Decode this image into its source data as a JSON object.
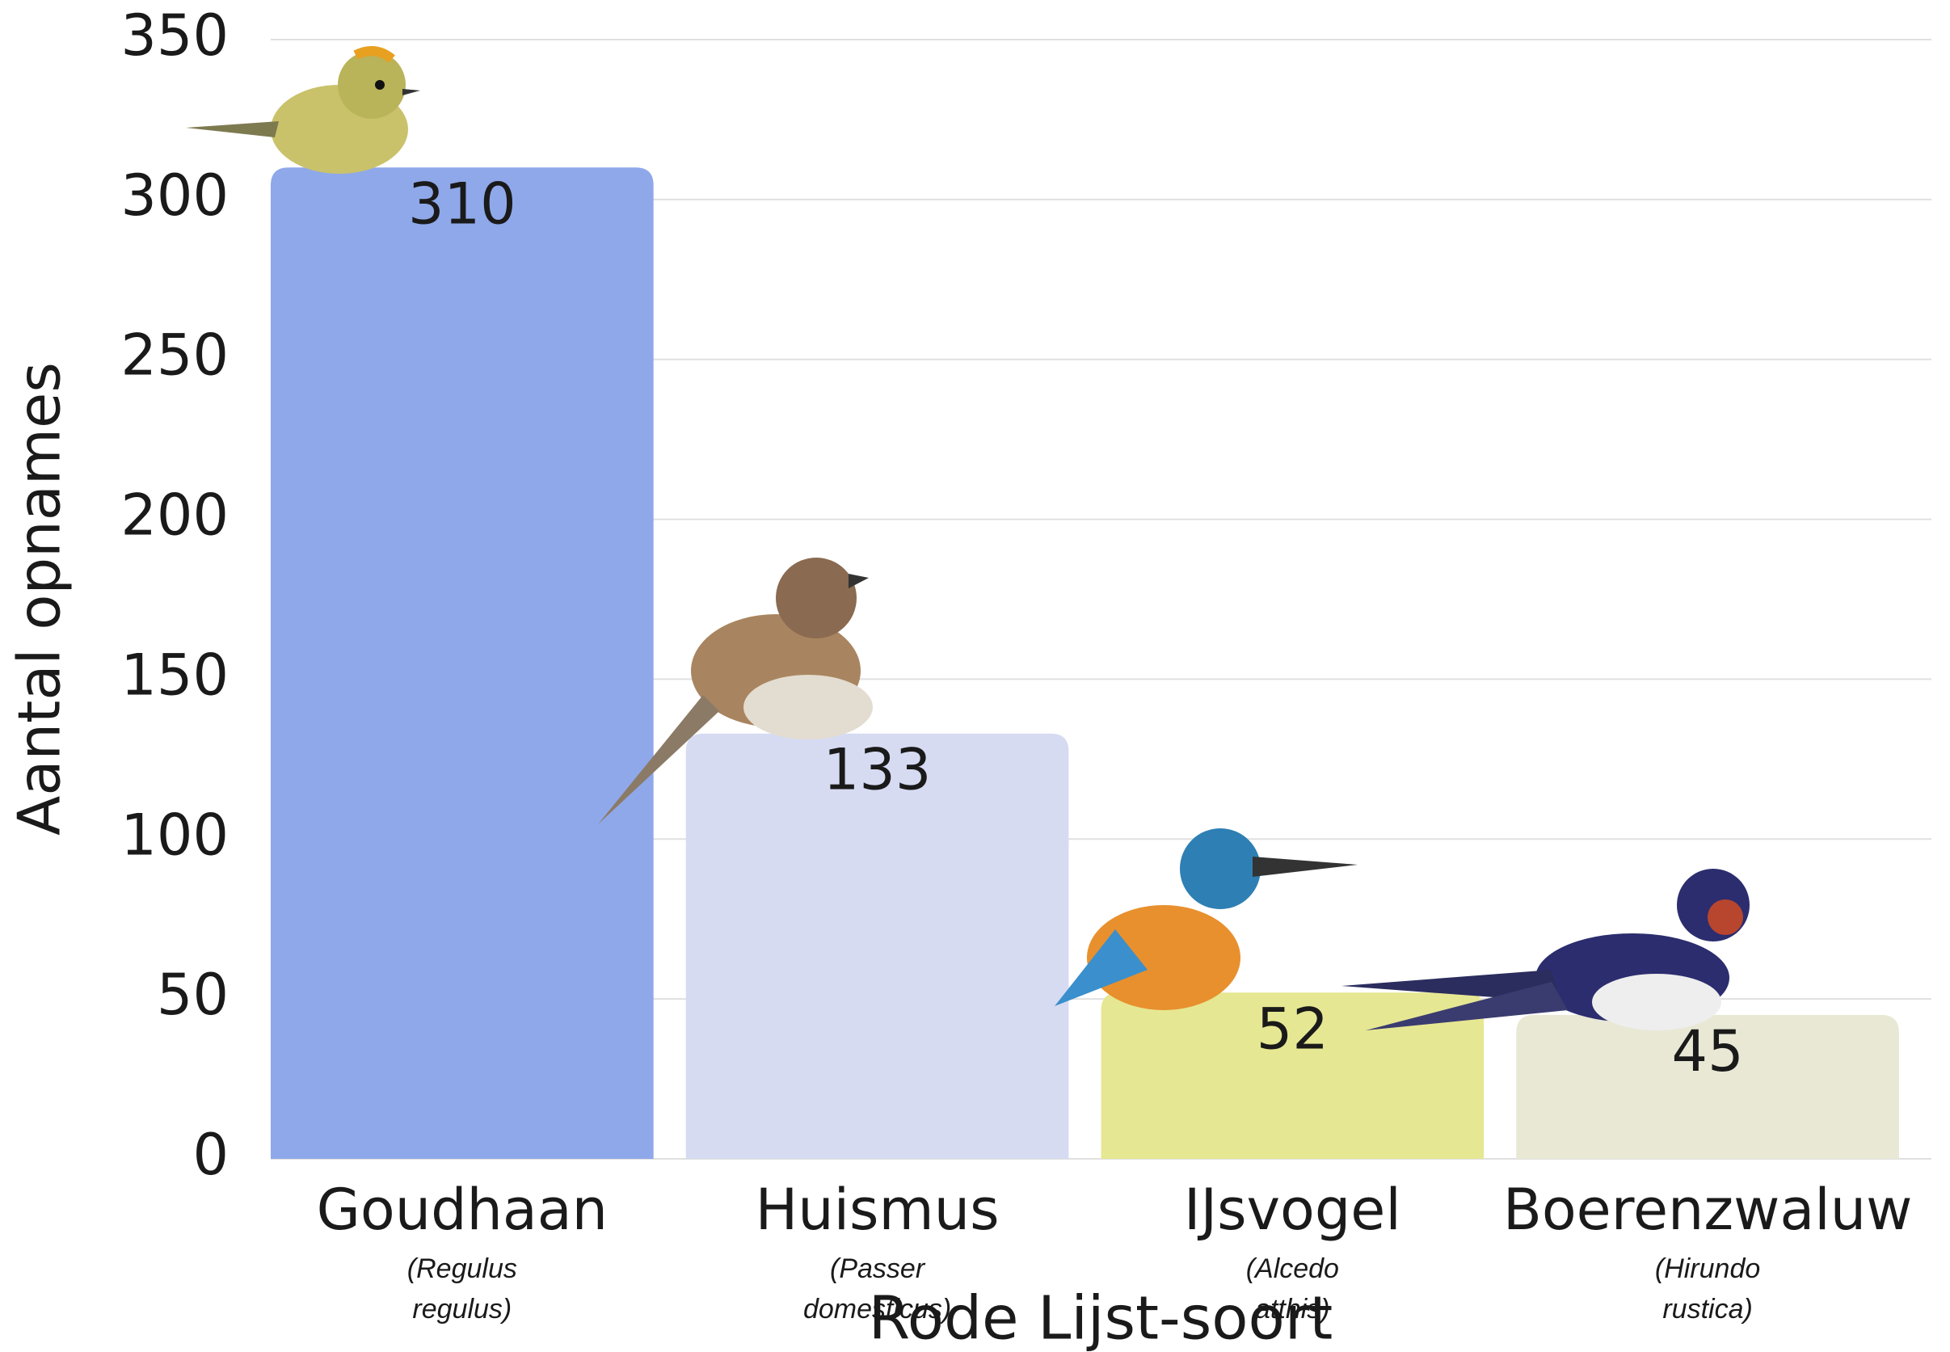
{
  "chart_data": {
    "type": "bar",
    "x_label": "Rode Lijst-soort",
    "y_label": "Aantal opnames",
    "categories": [
      "Goudhaan",
      "Huismus",
      "IJsvogel",
      "Boerenzwaluw"
    ],
    "subtitles": [
      "(Regulus regulus)",
      "(Passer domesticus)",
      "(Alcedo atthis)",
      "(Hirundo rustica)"
    ],
    "values": [
      310,
      133,
      52,
      45
    ],
    "colors": [
      "#8fa8ea",
      "#d6dbf2",
      "#e6e792",
      "#e8e8d5"
    ],
    "ylim": [
      0,
      350
    ],
    "yticks": [
      0,
      50,
      100,
      150,
      200,
      250,
      300,
      350
    ],
    "grid": true
  }
}
